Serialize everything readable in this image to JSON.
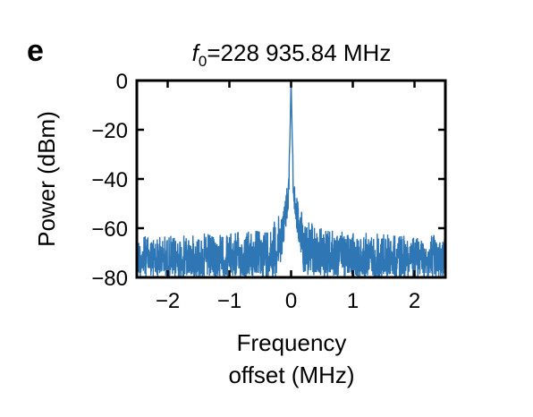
{
  "panel_label": "e",
  "chart_data": {
    "type": "line",
    "title_prefix": "f",
    "title_subscript": "0",
    "title_suffix": "=228 935.84 MHz",
    "title": "f0=228 935.84 MHz",
    "xlabel_line1": "Frequency",
    "xlabel_line2": "offset (MHz)",
    "ylabel": "Power (dBm)",
    "xlim": [
      -2.5,
      2.5
    ],
    "ylim": [
      -80,
      0
    ],
    "xticks": [
      -2,
      -1,
      0,
      1,
      2
    ],
    "xtick_labels": [
      "−2",
      "−1",
      "0",
      "1",
      "2"
    ],
    "yticks": [
      0,
      -20,
      -40,
      -60,
      -80
    ],
    "ytick_labels": [
      "0",
      "−20",
      "−40",
      "−60",
      "−80"
    ],
    "grid": false,
    "line_color": "#2f76b5",
    "series": [
      {
        "x": [
          -2.5,
          -2.0,
          -1.5,
          -1.0,
          -0.5,
          -0.3,
          -0.15,
          -0.08,
          -0.04,
          -0.02,
          0.0,
          0.02,
          0.04,
          0.08,
          0.15,
          0.3,
          0.5,
          1.0,
          1.5,
          2.0,
          2.5
        ],
        "y": [
          -63,
          -63,
          -62,
          -62,
          -60,
          -57,
          -52,
          -45,
          -38,
          -25,
          0,
          -25,
          -38,
          -45,
          -52,
          -57,
          -60,
          -62,
          -62,
          -63,
          -63
        ],
        "noise_floor": -80
      }
    ]
  }
}
